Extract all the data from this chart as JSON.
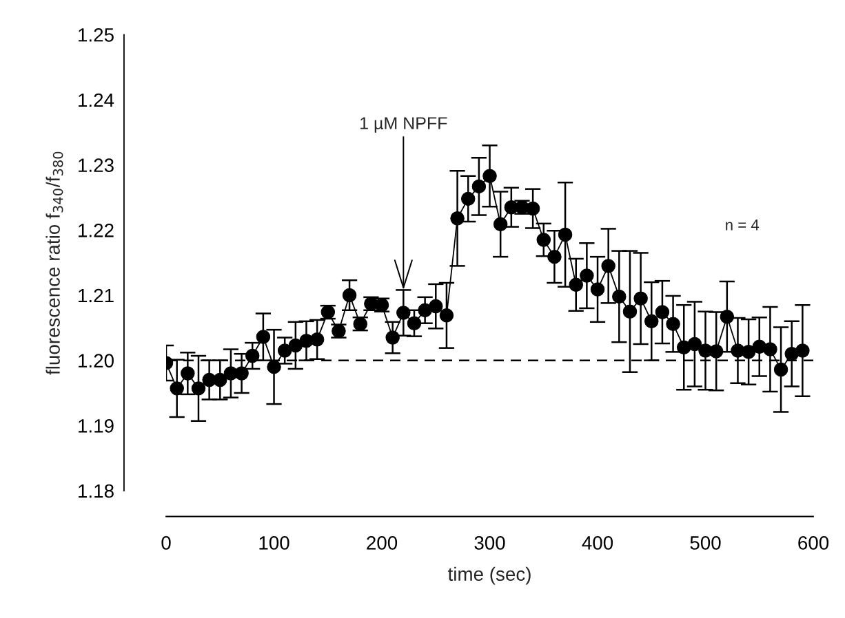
{
  "chart_data": {
    "type": "line",
    "xlabel": "time (sec)",
    "ylabel": "fluorescence ratio f$_{340}$/f$_{380}$",
    "x": [
      0,
      10,
      20,
      30,
      40,
      50,
      60,
      70,
      80,
      90,
      100,
      110,
      120,
      130,
      140,
      150,
      160,
      170,
      180,
      190,
      200,
      210,
      220,
      230,
      240,
      250,
      260,
      270,
      280,
      290,
      300,
      310,
      320,
      330,
      340,
      350,
      360,
      370,
      380,
      390,
      400,
      410,
      420,
      430,
      440,
      450,
      460,
      470,
      480,
      490,
      500,
      510,
      520,
      530,
      540,
      550,
      560,
      570,
      580,
      590
    ],
    "series": [
      {
        "color": "#000000",
        "values": [
          1.1996,
          1.1957,
          1.198,
          1.1957,
          1.197,
          1.197,
          1.198,
          1.198,
          1.2007,
          1.2036,
          1.199,
          1.2015,
          1.2023,
          1.203,
          1.2032,
          1.2074,
          1.2045,
          1.21,
          1.2056,
          1.2087,
          1.2085,
          1.2035,
          1.2073,
          1.2057,
          1.2077,
          1.2083,
          1.2069,
          1.2218,
          1.2248,
          1.2267,
          1.2283,
          1.2209,
          1.2235,
          1.2235,
          1.2233,
          1.2185,
          1.2159,
          1.2193,
          1.2116,
          1.213,
          1.2109,
          1.2145,
          1.2098,
          1.2075,
          1.2095,
          1.206,
          1.2074,
          1.2056,
          1.202,
          1.2025,
          1.2015,
          1.2014,
          1.2067,
          1.2015,
          1.2013,
          1.2021,
          1.2017,
          1.1986,
          1.201,
          1.2015
        ],
        "errors": [
          0.0027,
          0.0044,
          0.0032,
          0.005,
          0.003,
          0.003,
          0.0037,
          0.003,
          0.002,
          0.0036,
          0.0057,
          0.002,
          0.0036,
          0.003,
          0.003,
          0.001,
          0.001,
          0.0023,
          0.001,
          0.001,
          0.001,
          0.0024,
          0.0035,
          0.002,
          0.002,
          0.0034,
          0.005,
          0.0073,
          0.0035,
          0.0044,
          0.0047,
          0.005,
          0.003,
          0.001,
          0.003,
          0.0025,
          0.004,
          0.008,
          0.004,
          0.005,
          0.005,
          0.0057,
          0.007,
          0.0093,
          0.007,
          0.006,
          0.0048,
          0.0043,
          0.0065,
          0.0065,
          0.006,
          0.006,
          0.0054,
          0.005,
          0.005,
          0.0045,
          0.0065,
          0.0065,
          0.005,
          0.007
        ]
      }
    ],
    "xlim": [
      0,
      600
    ],
    "xticks": [
      0,
      100,
      200,
      300,
      400,
      500,
      600
    ],
    "ylim": [
      1.18,
      1.25
    ],
    "yticks": [
      {
        "value": 1.18,
        "label": "1.18"
      },
      {
        "value": 1.19,
        "label": "1.19"
      },
      {
        "value": 1.2,
        "label": "1.20"
      },
      {
        "value": 1.21,
        "label": "1.21"
      },
      {
        "value": 1.22,
        "label": "1.22"
      },
      {
        "value": 1.23,
        "label": "1.23"
      },
      {
        "value": 1.24,
        "label": "1.24"
      },
      {
        "value": 1.25,
        "label": "1.25"
      }
    ],
    "ref_lines": [
      {
        "axis": "y",
        "value": 1.2,
        "line_style": "dashed",
        "color": "#000000"
      }
    ],
    "annotations": [
      {
        "text": "1 µM NPFF",
        "x": 220,
        "y": 1.2108
      },
      "n = 4"
    ],
    "marker": "circle",
    "line_style": "solid",
    "grid": false,
    "legend": false
  }
}
